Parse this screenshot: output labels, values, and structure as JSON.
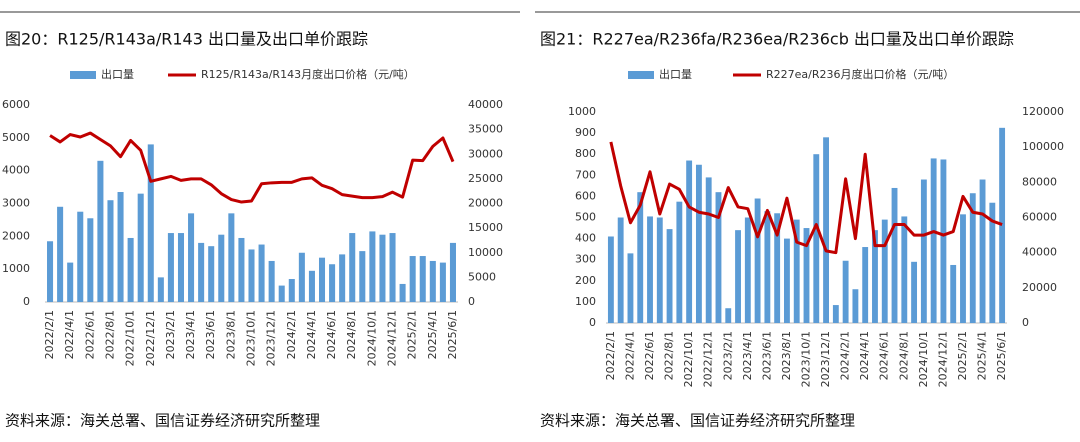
{
  "chart_data": [
    {
      "type": "bar-line",
      "title": "图20：R125/R143a/R143 出口量及出口单价跟踪",
      "source": "资料来源：海关总署、国信证券经济研究所整理",
      "categories": [
        "2022/2/1",
        null,
        "2022/4/1",
        null,
        "2022/6/1",
        null,
        "2022/8/1",
        null,
        "2022/10/1",
        null,
        "2022/12/1",
        null,
        "2023/2/1",
        null,
        "2023/4/1",
        null,
        "2023/6/1",
        null,
        "2023/8/1",
        null,
        "2023/10/1",
        null,
        "2023/12/1",
        null,
        "2024/2/1",
        null,
        "2024/4/1",
        null,
        "2024/6/1",
        null,
        "2024/8/1",
        null,
        "2024/10/1",
        null,
        "2024/12/1",
        null,
        "2025/2/1",
        null,
        "2025/4/1",
        null,
        "2025/6/1"
      ],
      "series": [
        {
          "name": "出口量",
          "color": "#5b9bd5",
          "values": [
            1850,
            2900,
            1200,
            2750,
            2550,
            4300,
            3100,
            3350,
            1950,
            3300,
            4800,
            750,
            2100,
            2100,
            2700,
            1800,
            1700,
            2050,
            2700,
            1950,
            1600,
            1750,
            1250,
            500,
            700,
            1500,
            950,
            1350,
            1150,
            1450,
            2100,
            1550,
            2150,
            2050,
            2100,
            550,
            1400,
            1400,
            1250,
            1200,
            1800
          ]
        },
        {
          "name": "R125/R143a/R143月度出口价格（元/吨）",
          "color": "#c00000",
          "axis": "y2",
          "values": [
            33800,
            32500,
            34000,
            33500,
            34300,
            33000,
            31700,
            29500,
            32800,
            30800,
            24500,
            25000,
            25500,
            24700,
            25000,
            25000,
            23800,
            22000,
            20800,
            20300,
            20500,
            24000,
            24200,
            24300,
            24300,
            25000,
            25200,
            23700,
            23000,
            21800,
            21500,
            21200,
            21200,
            21400,
            22300,
            21300,
            28800,
            28700,
            31600,
            33300,
            28500
          ]
        }
      ],
      "ylim": [
        0,
        6000
      ],
      "yticks": [
        0,
        1000,
        2000,
        3000,
        4000,
        5000,
        6000
      ],
      "y2lim": [
        0,
        40000
      ],
      "y2ticks": [
        0,
        5000,
        10000,
        15000,
        20000,
        25000,
        30000,
        35000,
        40000
      ]
    },
    {
      "type": "bar-line",
      "title": "图21：R227ea/R236fa/R236ea/R236cb 出口量及出口单价跟踪",
      "source": "资料来源：海关总署、国信证券经济研究所整理",
      "categories": [
        "2022/2/1",
        null,
        "2022/4/1",
        null,
        "2022/6/1",
        null,
        "2022/8/1",
        null,
        "2022/10/1",
        null,
        "2022/12/1",
        null,
        "2023/2/1",
        null,
        "2023/4/1",
        null,
        "2023/6/1",
        null,
        "2023/8/1",
        null,
        "2023/10/1",
        null,
        "2023/12/1",
        null,
        "2024/2/1",
        null,
        "2024/4/1",
        null,
        "2024/6/1",
        null,
        "2024/8/1",
        null,
        "2024/10/1",
        null,
        "2024/12/1",
        null,
        "2025/2/1",
        null,
        "2025/4/1",
        null,
        "2025/6/1"
      ],
      "series": [
        {
          "name": "出口量",
          "color": "#5b9bd5",
          "values": [
            410,
            500,
            330,
            620,
            505,
            500,
            445,
            575,
            770,
            750,
            690,
            620,
            70,
            440,
            500,
            590,
            530,
            520,
            400,
            490,
            450,
            800,
            880,
            85,
            295,
            160,
            360,
            440,
            490,
            640,
            505,
            290,
            680,
            780,
            775,
            275,
            515,
            615,
            680,
            570,
            925
          ]
        },
        {
          "name": "R227ea/R236月度出口价格（元/吨）",
          "color": "#c00000",
          "axis": "y2",
          "values": [
            103000,
            78000,
            57000,
            67000,
            86000,
            62000,
            79000,
            76000,
            66000,
            63000,
            62000,
            60000,
            77000,
            66000,
            65000,
            49000,
            64000,
            50000,
            71000,
            46000,
            44000,
            56000,
            41000,
            40000,
            82000,
            48000,
            96000,
            44000,
            44000,
            56000,
            56000,
            50000,
            50000,
            52000,
            50000,
            52000,
            72000,
            63000,
            62000,
            58000,
            56000
          ]
        }
      ],
      "ylim": [
        0,
        1000
      ],
      "yticks": [
        0,
        100,
        200,
        300,
        400,
        500,
        600,
        700,
        800,
        900,
        1000
      ],
      "y2lim": [
        0,
        120000
      ],
      "y2ticks": [
        0,
        20000,
        40000,
        60000,
        80000,
        100000,
        120000
      ]
    }
  ]
}
